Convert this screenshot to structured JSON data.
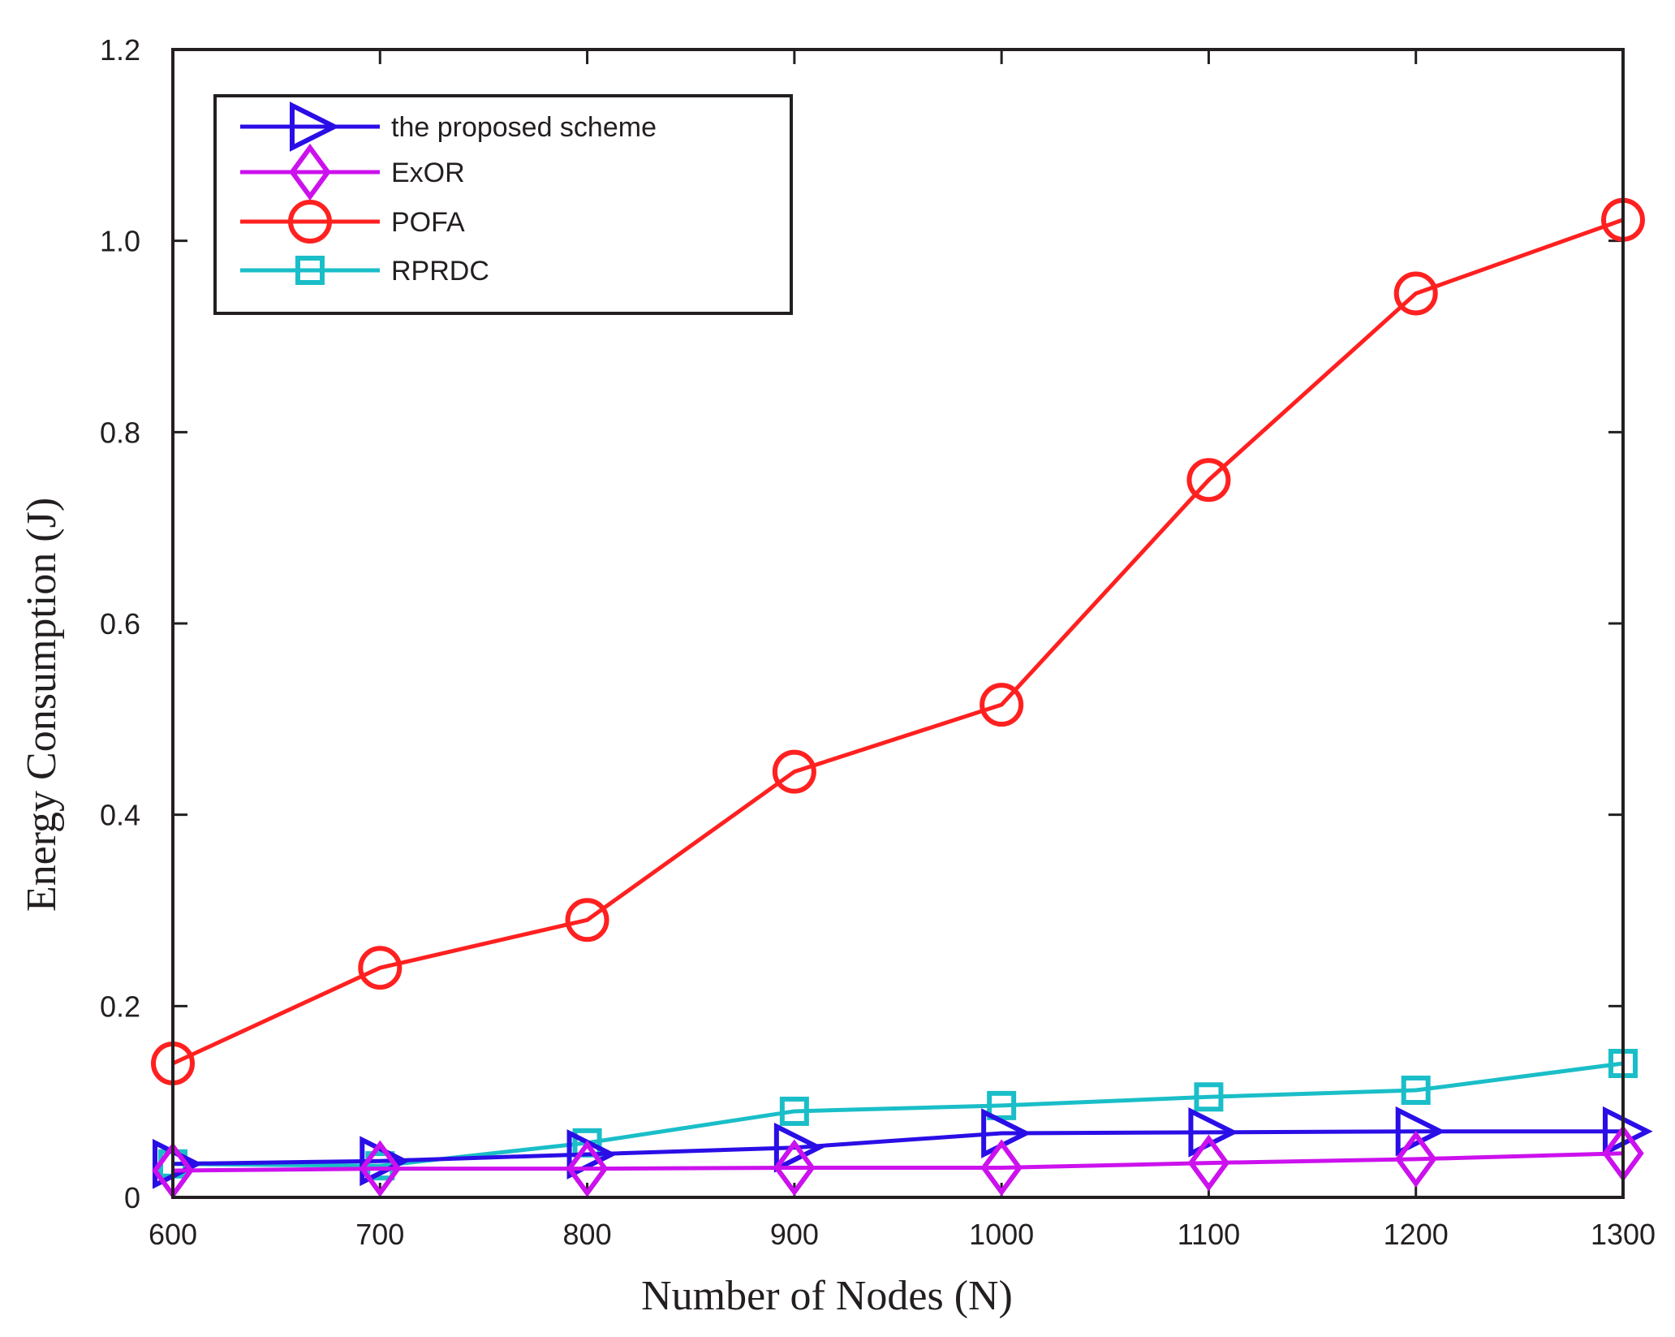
{
  "chart_data": {
    "type": "line",
    "title": "",
    "xlabel": "Number of Nodes (N)",
    "ylabel": "Energy Consumption (J)",
    "x": [
      600,
      700,
      800,
      900,
      1000,
      1100,
      1200,
      1300
    ],
    "xlim": [
      600,
      1300
    ],
    "ylim": [
      0,
      1.2
    ],
    "xticks": [
      600,
      700,
      800,
      900,
      1000,
      1100,
      1200,
      1300
    ],
    "xtick_labels": [
      "600",
      "700",
      "800",
      "900",
      "1000",
      "1100",
      "1200",
      "1300"
    ],
    "yticks": [
      0,
      0.2,
      0.4,
      0.6,
      0.8,
      1.0,
      1.2
    ],
    "ytick_labels": [
      "0",
      "0.2",
      "0.4",
      "0.6",
      "0.8",
      "1.0",
      "1.2"
    ],
    "grid": false,
    "legend_position": "top-left",
    "series": [
      {
        "name": "the proposed scheme",
        "color": "#2a0ee6",
        "marker": "triangle-right",
        "values": [
          0.035,
          0.038,
          0.045,
          0.052,
          0.067,
          0.068,
          0.069,
          0.069
        ]
      },
      {
        "name": "ExOR",
        "color": "#cc11ee",
        "marker": "diamond",
        "values": [
          0.028,
          0.03,
          0.03,
          0.031,
          0.031,
          0.036,
          0.04,
          0.046
        ]
      },
      {
        "name": "POFA",
        "color": "#ff2020",
        "marker": "circle",
        "values": [
          0.14,
          0.24,
          0.29,
          0.445,
          0.515,
          0.75,
          0.945,
          1.022
        ]
      },
      {
        "name": "RPRDC",
        "color": "#1abec8",
        "marker": "square",
        "values": [
          0.035,
          0.033,
          0.057,
          0.09,
          0.096,
          0.105,
          0.112,
          0.14
        ]
      }
    ]
  }
}
